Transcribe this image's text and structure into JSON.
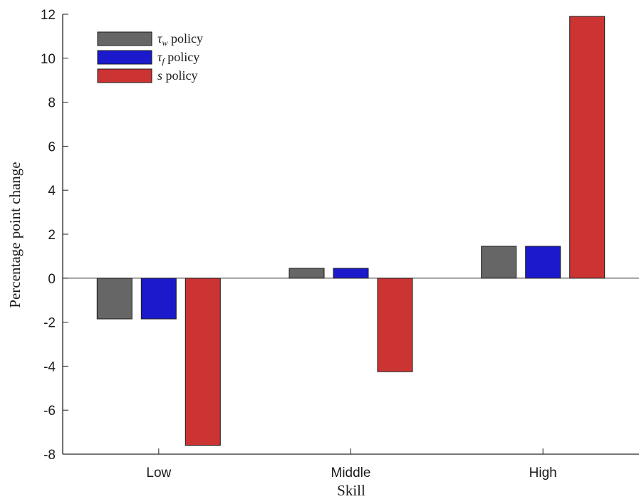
{
  "chart_data": {
    "type": "bar",
    "xlabel": "Skill",
    "ylabel": "Percentage point change",
    "categories": [
      "Low",
      "Middle",
      "High"
    ],
    "ylim": [
      -8,
      12
    ],
    "yticks": [
      -8,
      -6,
      -4,
      -2,
      0,
      2,
      4,
      6,
      8,
      10,
      12
    ],
    "grid": false,
    "legend_position": "top-left",
    "series": [
      {
        "name": "τw policy",
        "symbol": "τ",
        "subscript": "w",
        "suffix": " policy",
        "color": "#666666",
        "values": [
          -1.85,
          0.45,
          1.45
        ]
      },
      {
        "name": "τf policy",
        "symbol": "τ",
        "subscript": "f",
        "suffix": " policy",
        "color": "#1a1acc",
        "values": [
          -1.85,
          0.45,
          1.45
        ]
      },
      {
        "name": "s policy",
        "symbol": "s",
        "subscript": "",
        "suffix": " policy",
        "color": "#cc3333",
        "values": [
          -7.6,
          -4.25,
          11.9
        ]
      }
    ]
  }
}
